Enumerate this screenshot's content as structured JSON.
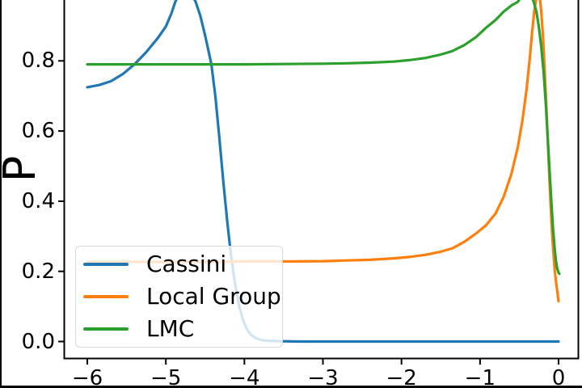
{
  "chart_data": {
    "type": "line",
    "title": "",
    "xlabel": "",
    "ylabel": "P",
    "grid": false,
    "xlim": [
      -6.29,
      0.25
    ],
    "ylim_visible": [
      -0.05,
      0.97
    ],
    "x_data_range": [
      -6,
      0
    ],
    "x_ticks": [
      -6,
      -5,
      -4,
      -3,
      -2,
      -1,
      0
    ],
    "x_tick_labels": [
      "−6",
      "−5",
      "−4",
      "−3",
      "−2",
      "−1",
      "0"
    ],
    "y_ticks": [
      0.0,
      0.2,
      0.4,
      0.6,
      0.8
    ],
    "y_tick_labels": [
      "0.0",
      "0.2",
      "0.4",
      "0.6",
      "0.8"
    ],
    "legend": {
      "position": "lower left",
      "entries": [
        "Cassini",
        "Local Group",
        "LMC"
      ]
    },
    "axis_color": "#000000",
    "series": [
      {
        "name": "Cassini",
        "color": "#1f77b4",
        "points": [
          [
            -6,
            0.725
          ],
          [
            -5.85,
            0.731
          ],
          [
            -5.7,
            0.742
          ],
          [
            -5.55,
            0.762
          ],
          [
            -5.4,
            0.79
          ],
          [
            -5.25,
            0.825
          ],
          [
            -5.1,
            0.866
          ],
          [
            -5,
            0.898
          ],
          [
            -4.93,
            0.935
          ],
          [
            -4.88,
            0.968
          ],
          [
            -4.82,
            0.995
          ],
          [
            -4.75,
            1.008
          ],
          [
            -4.68,
            0.995
          ],
          [
            -4.62,
            0.968
          ],
          [
            -4.56,
            0.928
          ],
          [
            -4.5,
            0.872
          ],
          [
            -4.46,
            0.832
          ],
          [
            -4.42,
            0.79
          ],
          [
            -4.37,
            0.7
          ],
          [
            -4.32,
            0.585
          ],
          [
            -4.27,
            0.46
          ],
          [
            -4.22,
            0.345
          ],
          [
            -4.17,
            0.245
          ],
          [
            -4.12,
            0.165
          ],
          [
            -4.07,
            0.105
          ],
          [
            -4.02,
            0.063
          ],
          [
            -3.97,
            0.036
          ],
          [
            -3.92,
            0.02
          ],
          [
            -3.85,
            0.009
          ],
          [
            -3.78,
            0.004
          ],
          [
            -3.7,
            0.002
          ],
          [
            -3.55,
            0.001
          ],
          [
            -3.3,
            0
          ],
          [
            -3,
            0
          ],
          [
            -2.5,
            0
          ],
          [
            -2,
            0
          ],
          [
            -1.5,
            0
          ],
          [
            -1,
            0
          ],
          [
            -0.5,
            0
          ],
          [
            0,
            0
          ]
        ]
      },
      {
        "name": "Local Group",
        "color": "#ff7f0e",
        "points": [
          [
            -6,
            0.227
          ],
          [
            -5.5,
            0.227
          ],
          [
            -5,
            0.227
          ],
          [
            -4.5,
            0.227
          ],
          [
            -4,
            0.228
          ],
          [
            -3.5,
            0.228
          ],
          [
            -3,
            0.229
          ],
          [
            -2.7,
            0.231
          ],
          [
            -2.4,
            0.233
          ],
          [
            -2.1,
            0.237
          ],
          [
            -1.9,
            0.241
          ],
          [
            -1.7,
            0.247
          ],
          [
            -1.5,
            0.256
          ],
          [
            -1.35,
            0.266
          ],
          [
            -1.2,
            0.284
          ],
          [
            -1.05,
            0.308
          ],
          [
            -0.92,
            0.332
          ],
          [
            -0.8,
            0.366
          ],
          [
            -0.7,
            0.412
          ],
          [
            -0.6,
            0.478
          ],
          [
            -0.52,
            0.553
          ],
          [
            -0.46,
            0.63
          ],
          [
            -0.41,
            0.715
          ],
          [
            -0.37,
            0.8
          ],
          [
            -0.34,
            0.875
          ],
          [
            -0.31,
            0.94
          ],
          [
            -0.28,
            0.985
          ],
          [
            -0.26,
            1.005
          ],
          [
            -0.24,
            0.985
          ],
          [
            -0.22,
            0.94
          ],
          [
            -0.2,
            0.875
          ],
          [
            -0.18,
            0.79
          ],
          [
            -0.16,
            0.69
          ],
          [
            -0.14,
            0.585
          ],
          [
            -0.12,
            0.48
          ],
          [
            -0.1,
            0.385
          ],
          [
            -0.08,
            0.3
          ],
          [
            -0.06,
            0.235
          ],
          [
            -0.045,
            0.195
          ],
          [
            -0.03,
            0.165
          ],
          [
            -0.015,
            0.14
          ],
          [
            0,
            0.115
          ]
        ]
      },
      {
        "name": "LMC",
        "color": "#2ca02c",
        "points": [
          [
            -6,
            0.79
          ],
          [
            -5.5,
            0.79
          ],
          [
            -5,
            0.79
          ],
          [
            -4.5,
            0.79
          ],
          [
            -4,
            0.79
          ],
          [
            -3.5,
            0.791
          ],
          [
            -3,
            0.792
          ],
          [
            -2.7,
            0.793
          ],
          [
            -2.4,
            0.795
          ],
          [
            -2.1,
            0.798
          ],
          [
            -1.9,
            0.802
          ],
          [
            -1.7,
            0.808
          ],
          [
            -1.5,
            0.818
          ],
          [
            -1.35,
            0.828
          ],
          [
            -1.2,
            0.845
          ],
          [
            -1.05,
            0.868
          ],
          [
            -0.92,
            0.895
          ],
          [
            -0.8,
            0.917
          ],
          [
            -0.7,
            0.94
          ],
          [
            -0.6,
            0.958
          ],
          [
            -0.52,
            0.968
          ],
          [
            -0.46,
            0.988
          ],
          [
            -0.41,
            1.002
          ],
          [
            -0.36,
            0.99
          ],
          [
            -0.315,
            0.968
          ],
          [
            -0.28,
            0.938
          ],
          [
            -0.25,
            0.895
          ],
          [
            -0.22,
            0.84
          ],
          [
            -0.19,
            0.765
          ],
          [
            -0.165,
            0.685
          ],
          [
            -0.14,
            0.59
          ],
          [
            -0.115,
            0.49
          ],
          [
            -0.09,
            0.39
          ],
          [
            -0.07,
            0.32
          ],
          [
            -0.05,
            0.265
          ],
          [
            -0.035,
            0.232
          ],
          [
            -0.02,
            0.21
          ],
          [
            0,
            0.196
          ],
          [
            0.01,
            0.193
          ]
        ]
      }
    ]
  }
}
